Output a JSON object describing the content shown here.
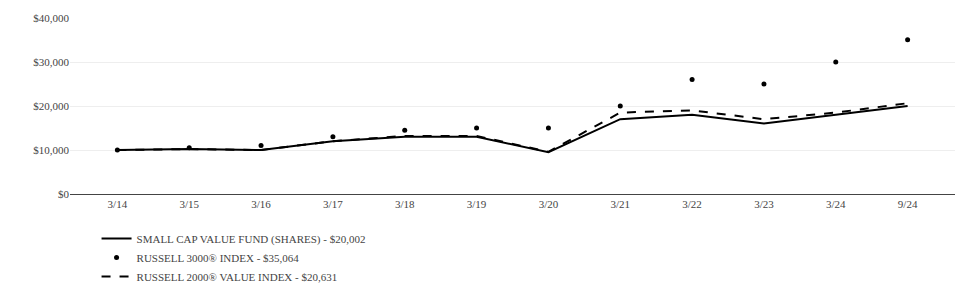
{
  "chart_data": {
    "type": "line",
    "categories": [
      "3/14",
      "3/15",
      "3/16",
      "3/17",
      "3/18",
      "3/19",
      "3/20",
      "3/21",
      "3/22",
      "3/23",
      "3/24",
      "9/24"
    ],
    "series": [
      {
        "name": "SMALL CAP VALUE FUND (SHARES) - $20,002",
        "color": "#000000",
        "line_style": "solid",
        "values": [
          10000,
          10200,
          10000,
          12000,
          13000,
          13000,
          9500,
          17000,
          18000,
          16000,
          18000,
          20002
        ]
      },
      {
        "name": "RUSSELL 3000® INDEX - $35,064",
        "color": "#000000",
        "line_style": "none",
        "marker": "dot",
        "values": [
          10000,
          10500,
          11000,
          13000,
          14500,
          15000,
          15000,
          20000,
          26000,
          25000,
          30000,
          35064
        ]
      },
      {
        "name": "RUSSELL 2000® VALUE INDEX - $20,631",
        "color": "#000000",
        "line_style": "dashed",
        "values": [
          10000,
          10200,
          10000,
          12000,
          13200,
          13200,
          9600,
          18500,
          19000,
          17000,
          18500,
          20631
        ]
      }
    ],
    "ylim": [
      0,
      40000
    ],
    "yticks": [
      {
        "value": 0,
        "label": "$0"
      },
      {
        "value": 10000,
        "label": "$10,000"
      },
      {
        "value": 20000,
        "label": "$20,000"
      },
      {
        "value": 30000,
        "label": "$30,000"
      },
      {
        "value": 40000,
        "label": "$40,000"
      }
    ],
    "grid": true,
    "legend": "bottom"
  }
}
